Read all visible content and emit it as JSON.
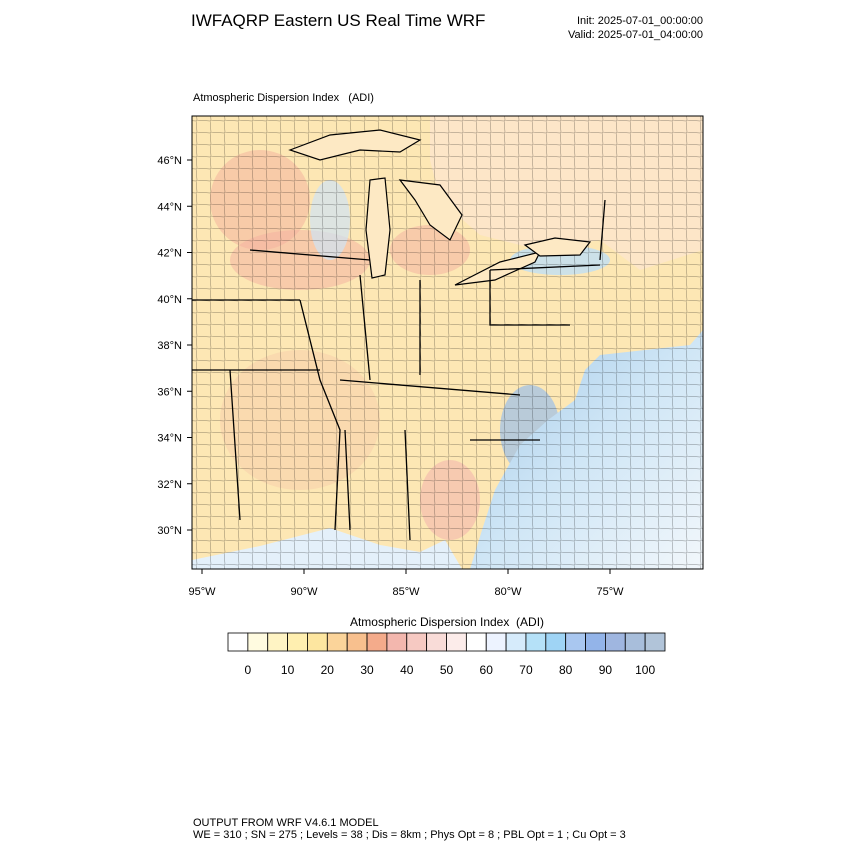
{
  "header": {
    "title": "IWFAQRP Eastern US Real Time WRF",
    "init": "Init: 2025-07-01_00:00:00",
    "valid": "Valid: 2025-07-01_04:00:00"
  },
  "map": {
    "subtitle": "Atmospheric Dispersion Index   (ADI)",
    "lat_labels": [
      "46°N",
      "44°N",
      "42°N",
      "40°N",
      "38°N",
      "36°N",
      "34°N",
      "32°N",
      "30°N"
    ],
    "lon_labels": [
      "95°W",
      "90°W",
      "85°W",
      "80°W",
      "75°W"
    ]
  },
  "colorbar": {
    "title": "Atmospheric Dispersion Index  (ADI)",
    "colors": [
      "#ffffff",
      "#fffbe0",
      "#fff4c4",
      "#ffefb0",
      "#fde6a0",
      "#fbd49a",
      "#f8c08e",
      "#f4ab8b",
      "#f3b7ae",
      "#f6c9c2",
      "#f9dcd8",
      "#fcecea",
      "#ffffff",
      "#edf3ff",
      "#d6ebfb",
      "#b5e1f8",
      "#9fd4f5",
      "#a9c7f0",
      "#93b4e9",
      "#9fb6e0",
      "#a8bedb",
      "#b1c4d9"
    ],
    "ticks": [
      0,
      10,
      20,
      30,
      40,
      50,
      60,
      70,
      80,
      90,
      100
    ]
  },
  "footer": {
    "line1": "OUTPUT FROM WRF V4.6.1 MODEL",
    "line2": "WE = 310 ; SN = 275 ; Levels = 38 ; Dis = 8km ; Phys Opt = 8 ; PBL Opt = 1 ; Cu Opt = 3"
  }
}
